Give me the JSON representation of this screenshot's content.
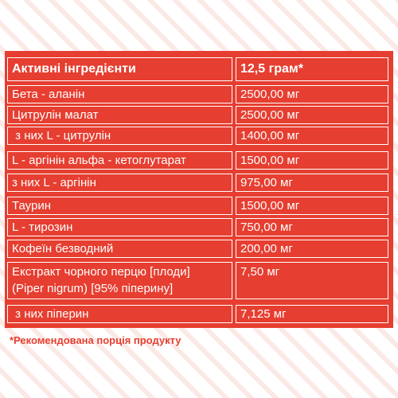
{
  "table": {
    "header": {
      "ingredient": "Активні інгредієнти",
      "amount": "12,5 грам*"
    },
    "rows": [
      {
        "ingredient": [
          "Бета - аланін"
        ],
        "amount": "2500,00 мг"
      },
      {
        "ingredient": [
          "Цитрулін малат"
        ],
        "amount": "2500,00 мг"
      },
      {
        "ingredient": [
          " з них L - цитрулін"
        ],
        "amount": "1400,00 мг"
      },
      {
        "ingredient": [
          "L - аргінін альфа - кетоглутарат"
        ],
        "amount": "1500,00 мг"
      },
      {
        "ingredient": [
          "з них L - аргінін"
        ],
        "amount": "975,00 мг"
      },
      {
        "ingredient": [
          "Таурин"
        ],
        "amount": "1500,00 мг"
      },
      {
        "ingredient": [
          "L - тирозин"
        ],
        "amount": "750,00 мг"
      },
      {
        "ingredient": [
          "Кофеїн безводний"
        ],
        "amount": "200,00 мг"
      },
      {
        "ingredient": [
          "Екстракт чорного перцю [плоди]",
          "(Piper nigrum) [95% піперину]"
        ],
        "amount": "7,50 мг"
      },
      {
        "ingredient": [
          " з них піперин"
        ],
        "amount": "7,125 мг"
      }
    ]
  },
  "footnote": "*Рекомендована порція продукту",
  "colors": {
    "panel": "#e63e30",
    "text": "#ffffff",
    "stripe": "#fbe9e6"
  }
}
